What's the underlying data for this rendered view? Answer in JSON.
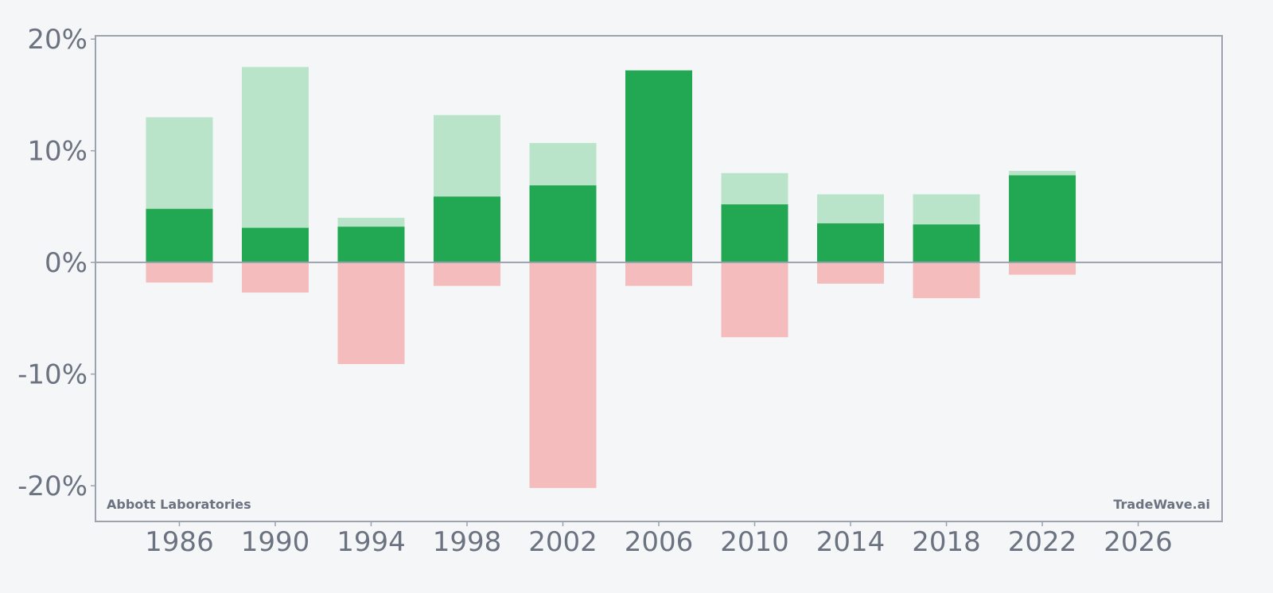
{
  "chart_data": {
    "type": "bar",
    "x": [
      1986,
      1990,
      1994,
      1998,
      2002,
      2006,
      2010,
      2014,
      2018,
      2022
    ],
    "series": [
      {
        "values": [
          4.8,
          3.1,
          3.2,
          5.9,
          6.9,
          17.2,
          5.2,
          3.5,
          3.4,
          7.8
        ]
      },
      {
        "values": [
          13.0,
          17.5,
          4.0,
          13.2,
          10.7,
          17.2,
          8.0,
          6.1,
          6.1,
          8.2
        ]
      },
      {
        "values": [
          -1.8,
          -2.7,
          -9.1,
          -2.1,
          -20.2,
          -2.1,
          -6.7,
          -1.9,
          -3.2,
          -1.1
        ]
      }
    ],
    "x_ticks": [
      "1986",
      "1990",
      "1994",
      "1998",
      "2002",
      "2006",
      "2010",
      "2014",
      "2018",
      "2022",
      "2026"
    ],
    "y_ticks": [
      "20%",
      "10%",
      "0%",
      "-10%",
      "-20%"
    ],
    "y_tick_values": [
      20,
      10,
      0,
      -10,
      -20
    ],
    "xlim": [
      1982.5,
      2029.5
    ],
    "ylim": [
      -23.2,
      20.3
    ],
    "grid": false,
    "colors": {
      "dark_green": "#22a852",
      "light_green": "#bae4c9",
      "light_red": "#f4bcbd",
      "axis": "#9ca3af",
      "text": "#6b7280"
    }
  },
  "watermarks": {
    "left": "Abbott Laboratories",
    "right": "TradeWave.ai"
  }
}
